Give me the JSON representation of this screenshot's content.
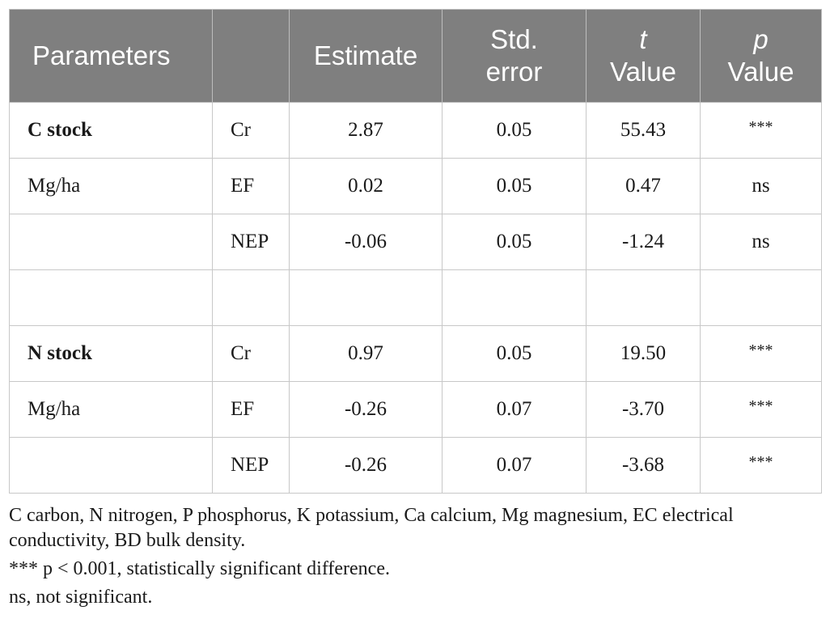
{
  "table": {
    "headers": [
      {
        "lines": [
          "Parameters"
        ]
      },
      {
        "lines": [
          ""
        ]
      },
      {
        "lines": [
          "Estimate"
        ]
      },
      {
        "lines": [
          "Std.",
          "error"
        ]
      },
      {
        "lines": [
          "t",
          "Value"
        ]
      },
      {
        "lines": [
          "p",
          "Value"
        ]
      }
    ],
    "rows": [
      {
        "parameter": "C stock",
        "term": "Cr",
        "estimate": "2.87",
        "std_error": "0.05",
        "t_value": "55.43",
        "p_value": "***"
      },
      {
        "parameter": "Mg/ha",
        "term": "EF",
        "estimate": "0.02",
        "std_error": "0.05",
        "t_value": "0.47",
        "p_value": "ns"
      },
      {
        "parameter": "",
        "term": "NEP",
        "estimate": "-0.06",
        "std_error": "0.05",
        "t_value": "-1.24",
        "p_value": "ns"
      },
      {
        "parameter": "",
        "term": "",
        "estimate": "",
        "std_error": "",
        "t_value": "",
        "p_value": ""
      },
      {
        "parameter": "N stock",
        "term": "Cr",
        "estimate": "0.97",
        "std_error": "0.05",
        "t_value": "19.50",
        "p_value": "***"
      },
      {
        "parameter": "Mg/ha",
        "term": "EF",
        "estimate": "-0.26",
        "std_error": "0.07",
        "t_value": "-3.70",
        "p_value": "***"
      },
      {
        "parameter": "",
        "term": "NEP",
        "estimate": "-0.26",
        "std_error": "0.07",
        "t_value": "-3.68",
        "p_value": "***"
      }
    ]
  },
  "footnotes": {
    "abbreviations_line1": "C carbon, N nitrogen, P phosphorus, K potassium, Ca calcium, Mg magnesium, EC electrical",
    "abbreviations_line2": "conductivity, BD bulk density.",
    "significance": "*** p < 0.001, statistically significant difference.",
    "ns": "ns, not significant."
  },
  "colors": {
    "header_background": "#7f7f7f",
    "header_text": "#ffffff",
    "grid_lines": "#c8c8c8"
  }
}
